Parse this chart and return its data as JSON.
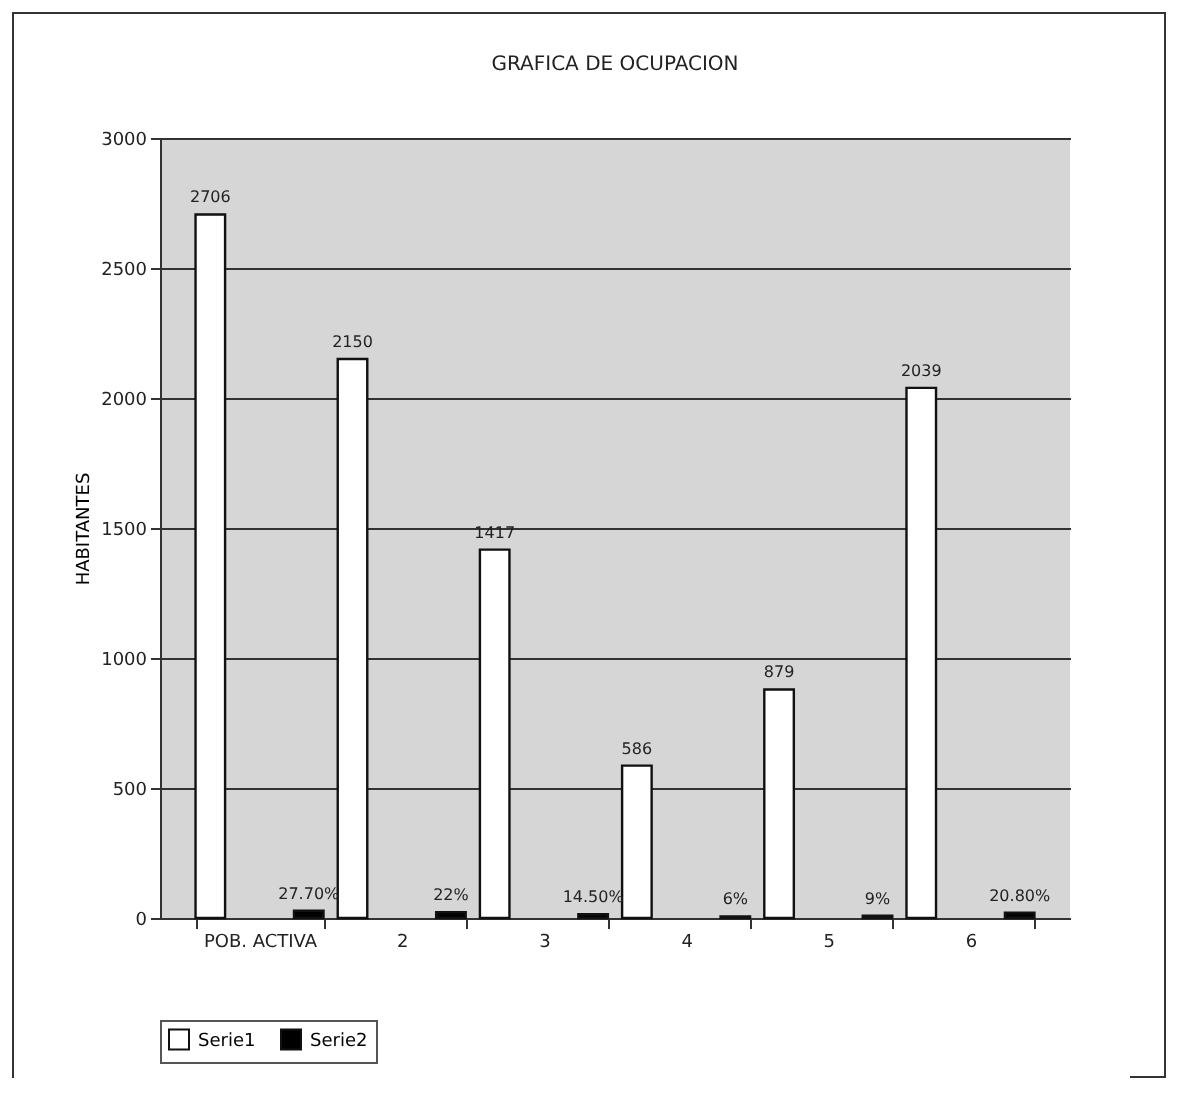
{
  "chart_data": {
    "type": "bar",
    "title": "GRAFICA DE OCUPACION",
    "ylabel": "HABITANTES",
    "categories": [
      "POB. ACTIVA",
      "2",
      "3",
      "4",
      "5",
      "6"
    ],
    "series": [
      {
        "name": "Serie1",
        "color": "#ffffff",
        "values": [
          2706,
          2150,
          1417,
          586,
          879,
          2039
        ],
        "value_labels": [
          "2706",
          "2150",
          "1417",
          "586",
          "879",
          "2039"
        ]
      },
      {
        "name": "Serie2",
        "color": "#000000",
        "values": [
          27.7,
          22,
          14.5,
          6,
          9,
          20.8
        ],
        "value_labels": [
          "27.70%",
          "22%",
          "14.50%",
          "6%",
          "9%",
          "20.80%"
        ]
      }
    ],
    "ylim": [
      0,
      3000
    ],
    "yticks": [
      0,
      500,
      1000,
      1500,
      2000,
      2500,
      3000
    ],
    "grid": "y",
    "legend": "bottom"
  }
}
